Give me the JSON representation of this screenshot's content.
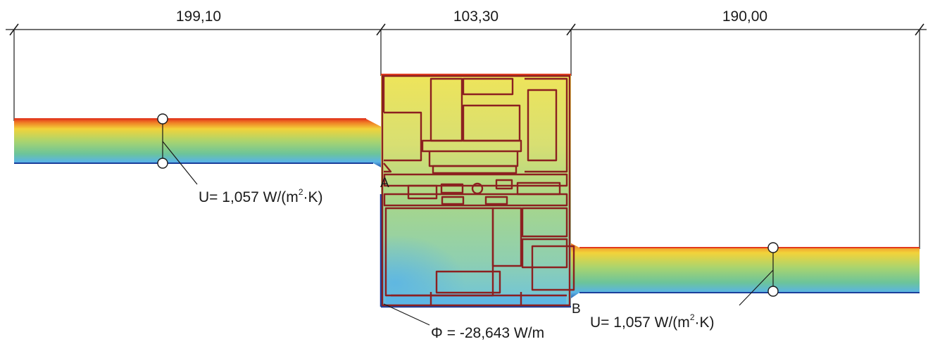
{
  "dimensions": [
    "199,10",
    "103,30",
    "190,00"
  ],
  "points": {
    "a": "A",
    "b": "B"
  },
  "u_left": {
    "symbol": "U",
    "value": "= 1,057 W/(m",
    "exp": "2",
    "unit": "·K)"
  },
  "u_right": {
    "symbol": "U",
    "value": "= 1,057 W/(m",
    "exp": "2",
    "unit": "·K)"
  },
  "phi": {
    "symbol": "Φ",
    "value": "= -28,643 W/m"
  },
  "colors": {
    "warm_edge": "#e23a1c",
    "warm": "#f2d33a",
    "mid": "#8fcf7a",
    "cool": "#5ab4e6",
    "cold_edge": "#1c3f9a",
    "frame_outline": "#8c2020",
    "window_fill": "#b9d98a"
  }
}
